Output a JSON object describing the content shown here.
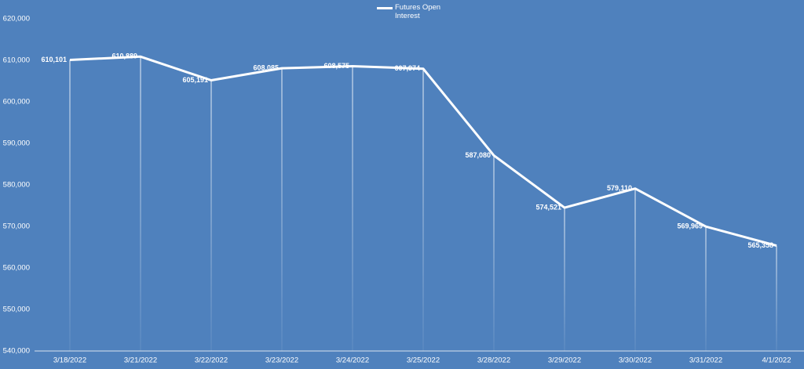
{
  "chart_data": {
    "type": "line",
    "categories": [
      "3/18/2022",
      "3/21/2022",
      "3/22/2022",
      "3/23/2022",
      "3/24/2022",
      "3/25/2022",
      "3/28/2022",
      "3/29/2022",
      "3/30/2022",
      "3/31/2022",
      "4/1/2022"
    ],
    "series": [
      {
        "name": "Futures Open Interest",
        "color": "#ffffff",
        "values": [
          610101,
          610889,
          605191,
          608085,
          608575,
          607974,
          587080,
          574521,
          579110,
          569969,
          565358
        ],
        "value_labels": [
          "610,101",
          "610,889",
          "605,191",
          "608,085",
          "608,575",
          "607,974",
          "587,080",
          "574,521",
          "579,110",
          "569,969",
          "565,358"
        ]
      }
    ],
    "ylim": [
      540000,
      620000
    ],
    "yticks": [
      {
        "value": 540000,
        "label": "540,000"
      },
      {
        "value": 550000,
        "label": "550,000"
      },
      {
        "value": 560000,
        "label": "560,000"
      },
      {
        "value": 570000,
        "label": "570,000"
      },
      {
        "value": 580000,
        "label": "580,000"
      },
      {
        "value": 590000,
        "label": "590,000"
      },
      {
        "value": 600000,
        "label": "600,000"
      },
      {
        "value": 610000,
        "label": "610,000"
      },
      {
        "value": 620000,
        "label": "620,000"
      }
    ],
    "background": "#4f81bd",
    "legend": "top"
  }
}
